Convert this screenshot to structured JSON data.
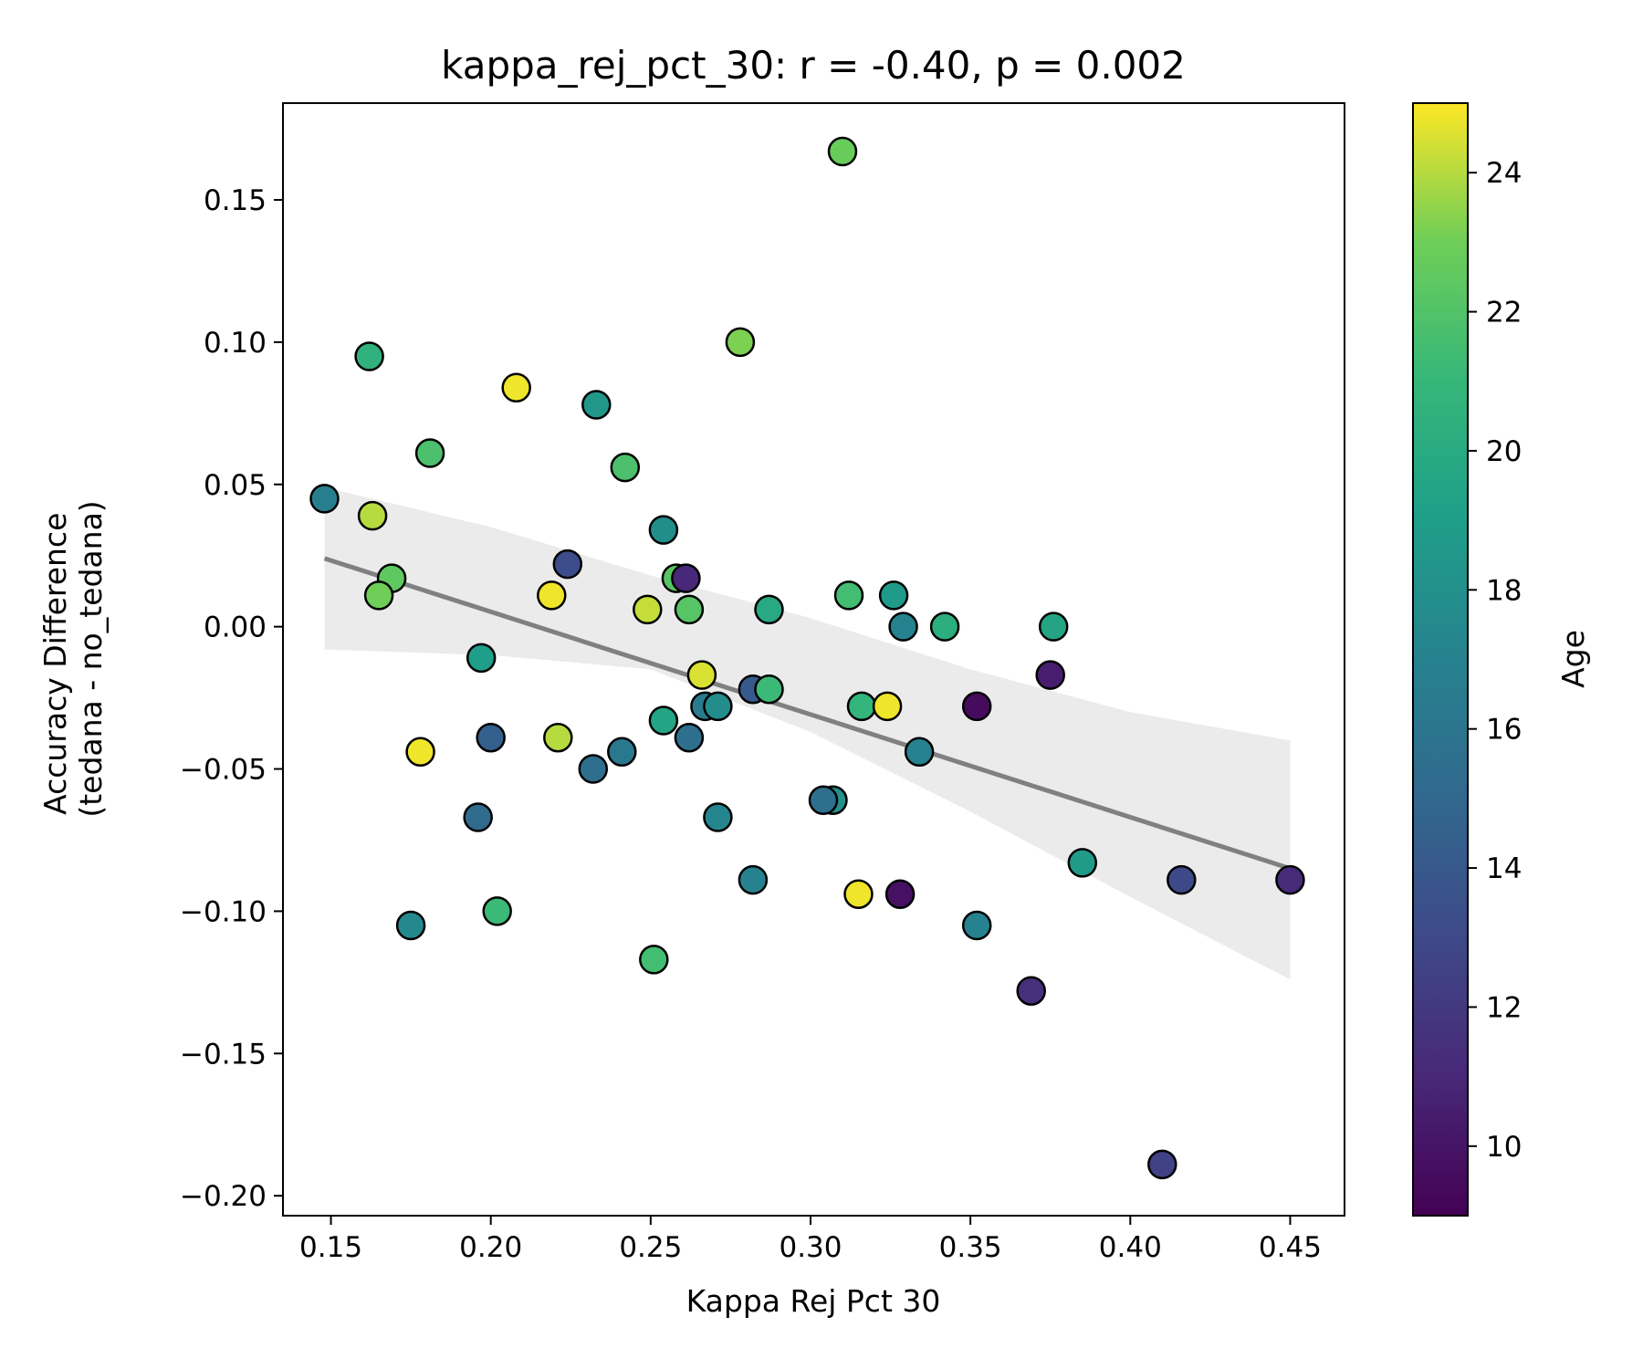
{
  "chart_data": {
    "type": "scatter",
    "title": "kappa_rej_pct_30: r = -0.40, p = 0.002",
    "xlabel": "Kappa Rej Pct 30",
    "ylabel_lines": [
      "Accuracy Difference",
      "(tedana - no_tedana)"
    ],
    "colorbar_label": "Age",
    "xlim": [
      0.135,
      0.467
    ],
    "ylim": [
      -0.207,
      0.184
    ],
    "clim": [
      9,
      25
    ],
    "colormap": "viridis",
    "xticks": [
      0.15,
      0.2,
      0.25,
      0.3,
      0.35,
      0.4,
      0.45
    ],
    "xtick_labels": [
      "0.15",
      "0.20",
      "0.25",
      "0.30",
      "0.35",
      "0.40",
      "0.45"
    ],
    "yticks": [
      0.15,
      0.1,
      0.05,
      0.0,
      -0.05,
      -0.1,
      -0.15,
      -0.2
    ],
    "ytick_labels": [
      "0.15",
      "0.10",
      "0.05",
      "0.00",
      "−0.05",
      "−0.10",
      "−0.15",
      "−0.20"
    ],
    "cticks": [
      10,
      12,
      14,
      16,
      18,
      20,
      22,
      24
    ],
    "ctick_labels": [
      "10",
      "12",
      "14",
      "16",
      "18",
      "20",
      "22",
      "24"
    ],
    "regression": {
      "color": "#808080",
      "x": [
        0.148,
        0.45
      ],
      "y": [
        0.024,
        -0.085
      ],
      "ci_color": "#ebebeb",
      "ci_x": [
        0.148,
        0.2,
        0.25,
        0.3,
        0.35,
        0.4,
        0.45
      ],
      "ci_upper": [
        0.049,
        0.035,
        0.018,
        0.003,
        -0.015,
        -0.03,
        -0.04
      ],
      "ci_lower": [
        -0.008,
        -0.01,
        -0.015,
        -0.037,
        -0.065,
        -0.095,
        -0.124
      ]
    },
    "points": [
      {
        "x": 0.31,
        "y": 0.167,
        "age": 22.8
      },
      {
        "x": 0.278,
        "y": 0.1,
        "age": 23.2
      },
      {
        "x": 0.162,
        "y": 0.095,
        "age": 20.5
      },
      {
        "x": 0.208,
        "y": 0.084,
        "age": 24.8
      },
      {
        "x": 0.233,
        "y": 0.078,
        "age": 18.5
      },
      {
        "x": 0.181,
        "y": 0.061,
        "age": 21.8
      },
      {
        "x": 0.242,
        "y": 0.056,
        "age": 21.8
      },
      {
        "x": 0.148,
        "y": 0.045,
        "age": 16.8
      },
      {
        "x": 0.163,
        "y": 0.039,
        "age": 24.0
      },
      {
        "x": 0.254,
        "y": 0.034,
        "age": 17.8
      },
      {
        "x": 0.224,
        "y": 0.022,
        "age": 13.2
      },
      {
        "x": 0.169,
        "y": 0.017,
        "age": 22.5
      },
      {
        "x": 0.258,
        "y": 0.017,
        "age": 22.2
      },
      {
        "x": 0.261,
        "y": 0.017,
        "age": 11.0
      },
      {
        "x": 0.165,
        "y": 0.011,
        "age": 23.0
      },
      {
        "x": 0.219,
        "y": 0.011,
        "age": 24.8
      },
      {
        "x": 0.312,
        "y": 0.011,
        "age": 21.5
      },
      {
        "x": 0.326,
        "y": 0.011,
        "age": 18.8
      },
      {
        "x": 0.249,
        "y": 0.006,
        "age": 24.2
      },
      {
        "x": 0.262,
        "y": 0.006,
        "age": 22.2
      },
      {
        "x": 0.287,
        "y": 0.006,
        "age": 19.8
      },
      {
        "x": 0.329,
        "y": 0.0,
        "age": 17.0
      },
      {
        "x": 0.342,
        "y": 0.0,
        "age": 20.3
      },
      {
        "x": 0.376,
        "y": 0.0,
        "age": 19.5
      },
      {
        "x": 0.197,
        "y": -0.011,
        "age": 19.0
      },
      {
        "x": 0.266,
        "y": -0.017,
        "age": 24.5
      },
      {
        "x": 0.375,
        "y": -0.017,
        "age": 10.5
      },
      {
        "x": 0.282,
        "y": -0.022,
        "age": 14.0
      },
      {
        "x": 0.287,
        "y": -0.022,
        "age": 21.2
      },
      {
        "x": 0.267,
        "y": -0.028,
        "age": 16.5
      },
      {
        "x": 0.271,
        "y": -0.028,
        "age": 17.8
      },
      {
        "x": 0.316,
        "y": -0.028,
        "age": 20.8
      },
      {
        "x": 0.324,
        "y": -0.028,
        "age": 24.8
      },
      {
        "x": 0.352,
        "y": -0.028,
        "age": 9.5
      },
      {
        "x": 0.254,
        "y": -0.033,
        "age": 19.5
      },
      {
        "x": 0.2,
        "y": -0.039,
        "age": 14.5
      },
      {
        "x": 0.221,
        "y": -0.039,
        "age": 24.0
      },
      {
        "x": 0.262,
        "y": -0.039,
        "age": 15.5
      },
      {
        "x": 0.178,
        "y": -0.044,
        "age": 24.8
      },
      {
        "x": 0.241,
        "y": -0.044,
        "age": 16.2
      },
      {
        "x": 0.334,
        "y": -0.044,
        "age": 17.0
      },
      {
        "x": 0.232,
        "y": -0.05,
        "age": 15.5
      },
      {
        "x": 0.307,
        "y": -0.061,
        "age": 18.0
      },
      {
        "x": 0.304,
        "y": -0.061,
        "age": 15.5
      },
      {
        "x": 0.196,
        "y": -0.067,
        "age": 15.2
      },
      {
        "x": 0.271,
        "y": -0.067,
        "age": 17.2
      },
      {
        "x": 0.385,
        "y": -0.083,
        "age": 18.8
      },
      {
        "x": 0.282,
        "y": -0.089,
        "age": 17.0
      },
      {
        "x": 0.416,
        "y": -0.089,
        "age": 13.0
      },
      {
        "x": 0.45,
        "y": -0.089,
        "age": 11.2
      },
      {
        "x": 0.315,
        "y": -0.094,
        "age": 24.8
      },
      {
        "x": 0.328,
        "y": -0.094,
        "age": 9.8
      },
      {
        "x": 0.202,
        "y": -0.1,
        "age": 21.2
      },
      {
        "x": 0.175,
        "y": -0.105,
        "age": 17.5
      },
      {
        "x": 0.352,
        "y": -0.105,
        "age": 17.0
      },
      {
        "x": 0.251,
        "y": -0.117,
        "age": 21.5
      },
      {
        "x": 0.369,
        "y": -0.128,
        "age": 11.5
      },
      {
        "x": 0.41,
        "y": -0.189,
        "age": 12.5
      }
    ]
  }
}
